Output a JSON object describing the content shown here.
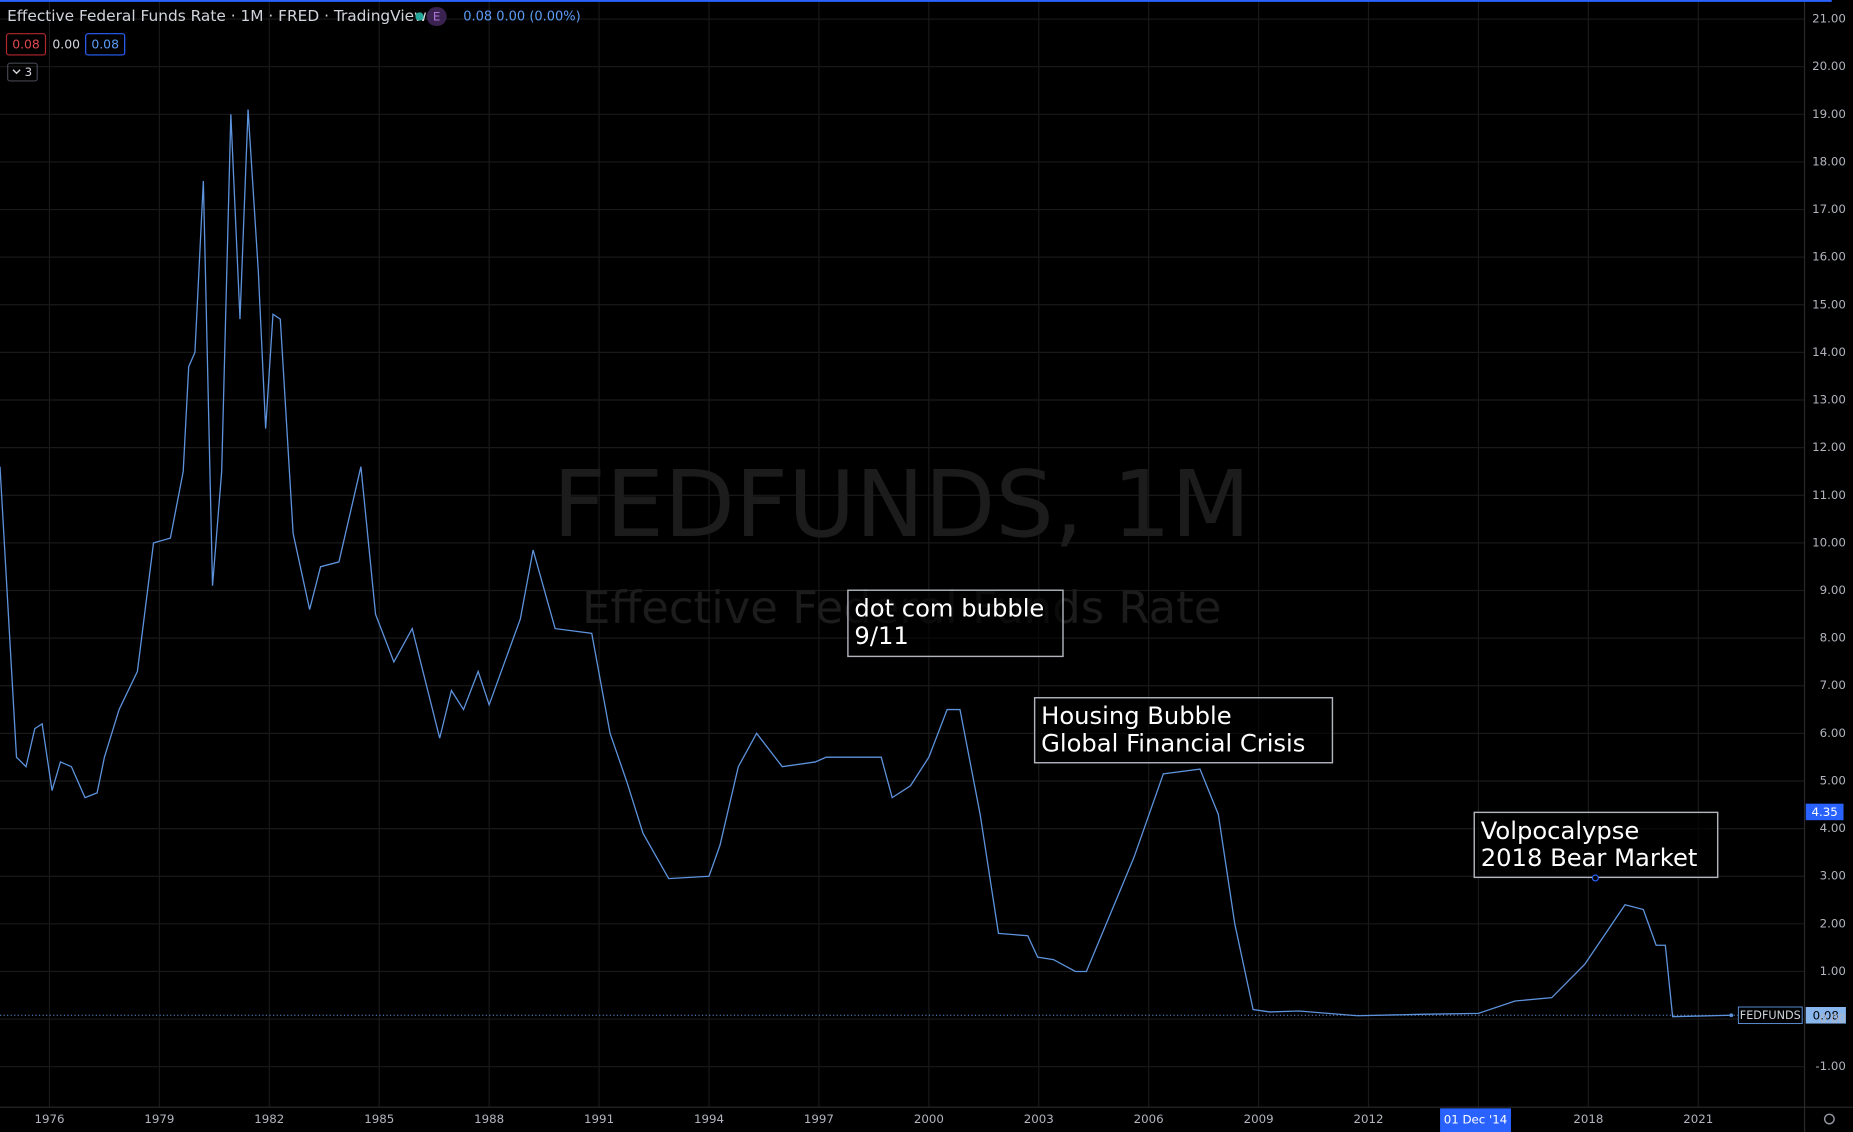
{
  "chart_data": {
    "type": "line",
    "title": "Effective Federal Funds Rate · 1M · FRED · TradingView",
    "header_change": "0.08 0.00 (0.00%)",
    "header_badge": "E",
    "ohlc_labels": [
      "0.08",
      "0.00",
      "0.08"
    ],
    "indicator_count": "3",
    "watermark": "FEDFUNDS, 1M",
    "watermark_subtitle": "Effective Federal Funds Rate",
    "annotations": [
      {
        "lines": [
          "dot com bubble",
          "9/11"
        ]
      },
      {
        "lines": [
          "Housing Bubble",
          "Global Financial Crisis"
        ]
      },
      {
        "lines": [
          "Volpocalypse",
          "2018 Bear Market"
        ]
      }
    ],
    "x": [
      1974.65,
      1975.1,
      1975.36,
      1975.6,
      1975.8,
      1976.07,
      1976.3,
      1976.6,
      1976.97,
      1977.3,
      1977.5,
      1977.9,
      1978.4,
      1978.84,
      1979.3,
      1979.65,
      1979.8,
      1979.97,
      1980.2,
      1980.45,
      1980.7,
      1980.95,
      1981.2,
      1981.42,
      1981.7,
      1981.9,
      1982.1,
      1982.3,
      1982.65,
      1983.1,
      1983.4,
      1983.9,
      1984.5,
      1984.9,
      1985.4,
      1985.9,
      1986.65,
      1986.97,
      1987.3,
      1987.7,
      1988.0,
      1988.85,
      1989.2,
      1989.8,
      1990.8,
      1991.3,
      1991.75,
      1992.2,
      1992.9,
      1994.0,
      1994.3,
      1994.8,
      1995.3,
      1996.0,
      1996.9,
      1997.2,
      1998.7,
      1999.0,
      1999.5,
      2000.0,
      2000.5,
      2000.85,
      2001.4,
      2001.9,
      2002.7,
      2002.97,
      2003.4,
      2004.0,
      2004.3,
      2005.6,
      2006.4,
      2007.4,
      2007.9,
      2008.35,
      2008.85,
      2009.3,
      2010.1,
      2011.7,
      2013.4,
      2015.0,
      2016.0,
      2017.0,
      2017.9,
      2019.0,
      2019.5,
      2019.85,
      2020.1,
      2020.3,
      2021.9
    ],
    "series": [
      {
        "name": "FEDFUNDS",
        "color": "#5d92dc",
        "values": [
          11.6,
          5.5,
          5.3,
          6.1,
          6.2,
          4.8,
          5.4,
          5.3,
          4.65,
          4.75,
          5.5,
          6.5,
          7.3,
          10.0,
          10.1,
          11.5,
          13.7,
          14.0,
          17.6,
          9.1,
          11.5,
          19.0,
          14.7,
          19.1,
          15.7,
          12.4,
          14.8,
          14.7,
          10.2,
          8.6,
          9.5,
          9.6,
          11.6,
          8.5,
          7.5,
          8.2,
          5.9,
          6.9,
          6.5,
          7.3,
          6.6,
          8.4,
          9.85,
          8.2,
          8.1,
          6.0,
          5.0,
          3.9,
          2.95,
          3.0,
          3.65,
          5.3,
          6.0,
          5.3,
          5.4,
          5.5,
          5.5,
          4.65,
          4.9,
          5.5,
          6.5,
          6.5,
          4.3,
          1.8,
          1.75,
          1.3,
          1.25,
          1.0,
          1.0,
          3.4,
          5.15,
          5.25,
          4.3,
          2.0,
          0.2,
          0.15,
          0.17,
          0.07,
          0.1,
          0.12,
          0.38,
          0.45,
          1.15,
          2.4,
          2.3,
          1.55,
          1.55,
          0.05,
          0.08
        ]
      }
    ],
    "last_value": 0.08,
    "crosshair_value": 4.35,
    "crosshair_date": {
      "value": 2014.92,
      "label": "01 Dec '14"
    },
    "xlim": [
      1974.65,
      2023.9
    ],
    "xticks": [
      1976,
      1979,
      1982,
      1985,
      1988,
      1991,
      1994,
      1997,
      2000,
      2003,
      2006,
      2009,
      2012,
      2015,
      2018,
      2021
    ],
    "ylim": [
      -1.85,
      21.4
    ],
    "yticks": [
      {
        "value": -1,
        "label": "-1.00"
      },
      {
        "value": 0,
        "label": "0.00"
      },
      {
        "value": 1,
        "label": "1.00"
      },
      {
        "value": 2,
        "label": "2.00"
      },
      {
        "value": 3,
        "label": "3.00"
      },
      {
        "value": 4,
        "label": "4.00"
      },
      {
        "value": 5,
        "label": "5.00"
      },
      {
        "value": 6,
        "label": "6.00"
      },
      {
        "value": 7,
        "label": "7.00"
      },
      {
        "value": 8,
        "label": "8.00"
      },
      {
        "value": 9,
        "label": "9.00"
      },
      {
        "value": 10,
        "label": "10.00"
      },
      {
        "value": 11,
        "label": "11.00"
      },
      {
        "value": 12,
        "label": "12.00"
      },
      {
        "value": 13,
        "label": "13.00"
      },
      {
        "value": 14,
        "label": "14.00"
      },
      {
        "value": 15,
        "label": "15.00"
      },
      {
        "value": 16,
        "label": "16.00"
      },
      {
        "value": 17,
        "label": "17.00"
      },
      {
        "value": 18,
        "label": "18.00"
      },
      {
        "value": 19,
        "label": "19.00"
      },
      {
        "value": 20,
        "label": "20.00"
      },
      {
        "value": 21,
        "label": "21.00"
      }
    ],
    "grid": true
  }
}
